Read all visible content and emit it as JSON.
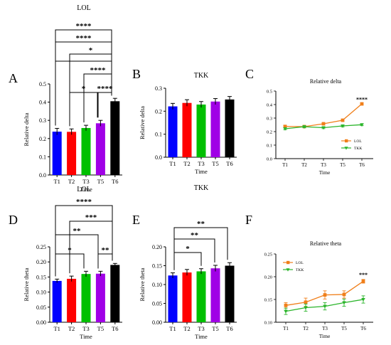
{
  "chart_data": [
    {
      "panel": "A",
      "title": "LOL",
      "type": "bar",
      "categories": [
        "T1",
        "T2",
        "T3",
        "T5",
        "T6"
      ],
      "values": [
        0.238,
        0.237,
        0.258,
        0.284,
        0.405
      ],
      "errors": [
        0.018,
        0.016,
        0.015,
        0.016,
        0.016
      ],
      "bar_colors": [
        "#0000ff",
        "#ff0000",
        "#00c000",
        "#a000e6",
        "#000000"
      ],
      "ylim": [
        0,
        0.5
      ],
      "yticks": [
        0,
        0.1,
        0.2,
        0.3,
        0.4,
        0.5
      ],
      "ytick_labels": [
        "0.0",
        "0.1",
        "0.2",
        "0.3",
        "0.4",
        "0.5"
      ],
      "ylabel": "Relative delta",
      "xlabel": "Time",
      "significance": [
        {
          "from": "T1",
          "to": "T6",
          "label": "****"
        },
        {
          "from": "T1",
          "to": "T6",
          "label": "****"
        },
        {
          "from": "T2",
          "to": "T6",
          "label": "*"
        },
        {
          "from": "T1",
          "to": "T6",
          "label": ""
        },
        {
          "from": "T3",
          "to": "T6",
          "label": "****"
        },
        {
          "from": "T2",
          "to": "T5",
          "label": "*"
        },
        {
          "from": "T5",
          "to": "T6",
          "label": "****"
        }
      ]
    },
    {
      "panel": "B",
      "title": "TKK",
      "type": "bar",
      "categories": [
        "T1",
        "T2",
        "T3",
        "T5",
        "T6"
      ],
      "values": [
        0.221,
        0.236,
        0.229,
        0.242,
        0.251
      ],
      "errors": [
        0.013,
        0.014,
        0.013,
        0.013,
        0.013
      ],
      "bar_colors": [
        "#0000ff",
        "#ff0000",
        "#00c000",
        "#a000e6",
        "#000000"
      ],
      "ylim": [
        0,
        0.3
      ],
      "yticks": [
        0,
        0.1,
        0.2,
        0.3
      ],
      "ytick_labels": [
        "0.0",
        "0.1",
        "0.2",
        "0.3"
      ],
      "ylabel": "Relative delta",
      "xlabel": "Time",
      "significance": []
    },
    {
      "panel": "C",
      "title": "Relative delta",
      "type": "line",
      "categories": [
        "T1",
        "T2",
        "T3",
        "T5",
        "T6"
      ],
      "series": [
        {
          "name": "LOL",
          "color": "#f07f1a",
          "marker": "square",
          "values": [
            0.238,
            0.237,
            0.258,
            0.284,
            0.405
          ],
          "errors": [
            0.008,
            0.007,
            0.007,
            0.007,
            0.007
          ]
        },
        {
          "name": "TKK",
          "color": "#2bb52b",
          "marker": "triangle",
          "values": [
            0.221,
            0.236,
            0.229,
            0.242,
            0.251
          ],
          "errors": [
            0.007,
            0.007,
            0.007,
            0.007,
            0.007
          ]
        }
      ],
      "ylim": [
        0,
        0.5
      ],
      "yticks": [
        0,
        0.1,
        0.2,
        0.3,
        0.4,
        0.5
      ],
      "ytick_labels": [
        "0.0",
        "0.1",
        "0.2",
        "0.3",
        "0.4",
        "0.5"
      ],
      "xlabel": "Time",
      "legend": "bottom-right",
      "annotations": [
        {
          "category": "T6",
          "value": 0.44,
          "label": "****"
        }
      ]
    },
    {
      "panel": "D",
      "title": "LOL",
      "type": "bar",
      "categories": [
        "T1",
        "T2",
        "T3",
        "T5",
        "T6"
      ],
      "values": [
        0.137,
        0.144,
        0.16,
        0.161,
        0.19
      ],
      "errors": [
        0.006,
        0.009,
        0.009,
        0.008,
        0.005
      ],
      "bar_colors": [
        "#0000ff",
        "#ff0000",
        "#00c000",
        "#a000e6",
        "#000000"
      ],
      "ylim": [
        0,
        0.25
      ],
      "yticks": [
        0,
        0.05,
        0.1,
        0.15,
        0.2,
        0.25
      ],
      "ytick_labels": [
        "0.00",
        "0.05",
        "0.10",
        "0.15",
        "0.20",
        "0.25"
      ],
      "ylabel": "Relative theta",
      "xlabel": "Time",
      "significance": [
        {
          "from": "T1",
          "to": "T6",
          "label": "****"
        },
        {
          "from": "T2",
          "to": "T6",
          "label": "***"
        },
        {
          "from": "T1",
          "to": "T5",
          "label": "**"
        },
        {
          "from": "T1",
          "to": "T3",
          "label": "*"
        },
        {
          "from": "T5",
          "to": "T6",
          "label": "**"
        }
      ]
    },
    {
      "panel": "E",
      "title": "TKK",
      "type": "bar",
      "categories": [
        "T1",
        "T2",
        "T3",
        "T5",
        "T6"
      ],
      "values": [
        0.124,
        0.132,
        0.135,
        0.143,
        0.15
      ],
      "errors": [
        0.007,
        0.008,
        0.007,
        0.008,
        0.008
      ],
      "bar_colors": [
        "#0000ff",
        "#ff0000",
        "#00c000",
        "#a000e6",
        "#000000"
      ],
      "ylim": [
        0,
        0.2
      ],
      "yticks": [
        0,
        0.05,
        0.1,
        0.15,
        0.2
      ],
      "ytick_labels": [
        "0.00",
        "0.05",
        "0.10",
        "0.15",
        "0.20"
      ],
      "ylabel": "Relative theta",
      "xlabel": "Time",
      "significance": [
        {
          "from": "T1",
          "to": "T6",
          "label": "**"
        },
        {
          "from": "T1",
          "to": "T5",
          "label": "**"
        },
        {
          "from": "T1",
          "to": "T3",
          "label": "*"
        }
      ]
    },
    {
      "panel": "F",
      "title": "Relative theta",
      "type": "line",
      "categories": [
        "T1",
        "T2",
        "T3",
        "T5",
        "T6"
      ],
      "series": [
        {
          "name": "LOL",
          "color": "#f07f1a",
          "marker": "square",
          "values": [
            0.137,
            0.144,
            0.16,
            0.161,
            0.19
          ],
          "errors": [
            0.006,
            0.009,
            0.009,
            0.008,
            0.004
          ]
        },
        {
          "name": "TKK",
          "color": "#2bb52b",
          "marker": "triangle",
          "values": [
            0.124,
            0.132,
            0.135,
            0.143,
            0.15
          ],
          "errors": [
            0.007,
            0.008,
            0.008,
            0.008,
            0.008
          ]
        }
      ],
      "ylim": [
        0.1,
        0.25
      ],
      "yticks": [
        0.1,
        0.15,
        0.2,
        0.25
      ],
      "ytick_labels": [
        "0.10",
        "0.15",
        "0.20",
        "0.25"
      ],
      "xlabel": "Time",
      "legend": "top-left",
      "annotations": [
        {
          "category": "T6",
          "value": 0.205,
          "label": "***"
        }
      ]
    }
  ]
}
